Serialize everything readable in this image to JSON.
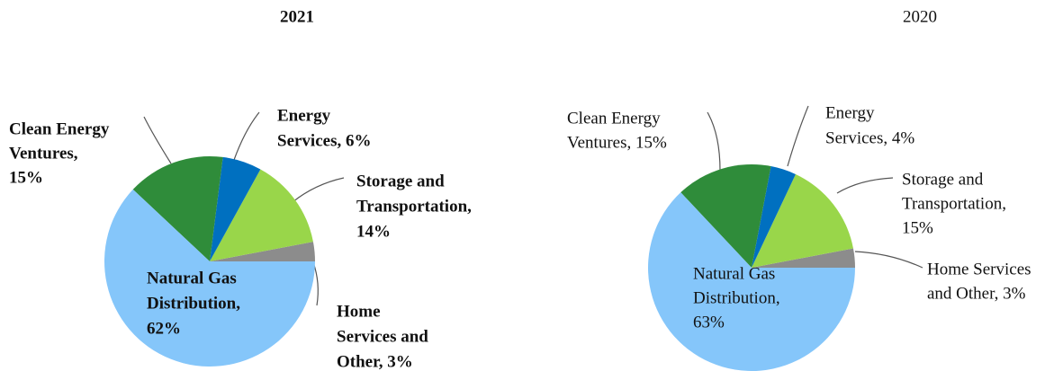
{
  "chart_data": [
    {
      "type": "pie",
      "title": "2021",
      "values": [
        3,
        14,
        6,
        15,
        62
      ],
      "value_labels": [
        [
          "Home",
          "Services and",
          "Other, 3%"
        ],
        [
          "Storage and",
          "Transportation,",
          "14%"
        ],
        [
          "Energy",
          "Services, 6%"
        ],
        [
          "Clean Energy",
          "Ventures,",
          "15%"
        ],
        [
          "Natural Gas",
          "Distribution,",
          "62%"
        ]
      ],
      "colors": [
        "#8c8c8c",
        "#99d64a",
        "#0070c0",
        "#2f8c3a",
        "#85c6fa"
      ]
    },
    {
      "type": "pie",
      "title": "2020",
      "values": [
        3,
        15,
        4,
        15,
        63
      ],
      "value_labels": [
        [
          "Home Services",
          "and Other, 3%"
        ],
        [
          "Storage and",
          "Transportation,",
          "15%"
        ],
        [
          "Energy",
          "Services, 4%"
        ],
        [
          "Clean Energy",
          "Ventures, 15%"
        ],
        [
          "Natural Gas",
          "Distribution,",
          "63%"
        ]
      ],
      "colors": [
        "#8c8c8c",
        "#99d64a",
        "#0070c0",
        "#2f8c3a",
        "#85c6fa"
      ]
    }
  ]
}
